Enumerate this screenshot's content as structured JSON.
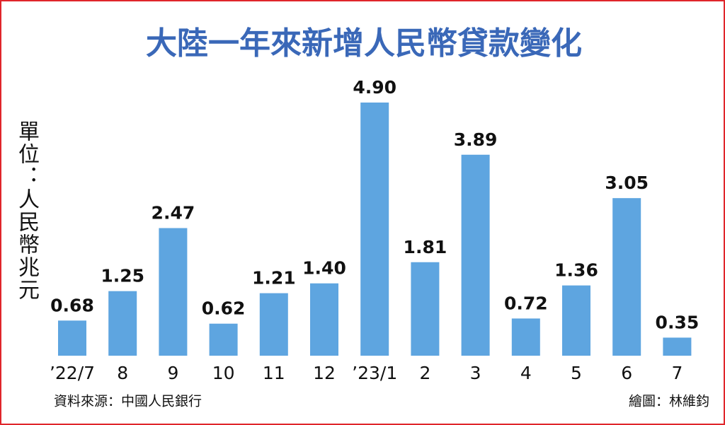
{
  "chart_data": {
    "type": "bar",
    "title": "大陸一年來新增人民幣貸款變化",
    "unit_label": "單位：人民幣兆元",
    "source": "資料來源：中國人民銀行",
    "credit": "繪圖：林維鈞",
    "categories": [
      "’22/7",
      "8",
      "9",
      "10",
      "11",
      "12",
      "’23/1",
      "2",
      "3",
      "4",
      "5",
      "6",
      "7"
    ],
    "values": [
      0.68,
      1.25,
      2.47,
      0.62,
      1.21,
      1.4,
      4.9,
      1.81,
      3.89,
      0.72,
      1.36,
      3.05,
      0.35
    ],
    "value_labels": [
      "0.68",
      "1.25",
      "2.47",
      "0.62",
      "1.21",
      "1.40",
      "4.90",
      "1.81",
      "3.89",
      "0.72",
      "1.36",
      "3.05",
      "0.35"
    ],
    "color": "#5ea5e0"
  }
}
